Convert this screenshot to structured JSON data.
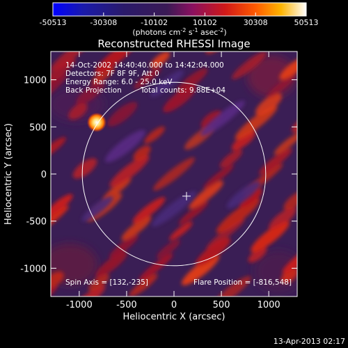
{
  "chart_data": {
    "type": "heatmap",
    "title": "Reconstructed RHESSI Image",
    "xlabel": "Heliocentric X (arcsec)",
    "ylabel": "Heliocentric Y (arcsec)",
    "xlim": [
      -1300,
      1300
    ],
    "ylim": [
      -1300,
      1300
    ],
    "x_ticks": [
      -1000,
      -500,
      0,
      500,
      1000
    ],
    "y_ticks": [
      -1000,
      -500,
      0,
      500,
      1000
    ],
    "colorbar": {
      "ticks": [
        "-50513",
        "-30308",
        "-10102",
        "10102",
        "30308",
        "50513"
      ],
      "range": [
        -50513,
        50513
      ],
      "unit_text": "(photons cm",
      "unit_sup1": "-2",
      "unit_mid": " s",
      "unit_sup2": "-1",
      "unit_mid2": " asec",
      "unit_sup3": "-2",
      "unit_end": ")",
      "colors": [
        "#0000ff",
        "#1a1aaa",
        "#2a1a6a",
        "#3a1a55",
        "#8a1060",
        "#d01818",
        "#ff5a00",
        "#ffb400",
        "#ffffff"
      ]
    },
    "annotations": {
      "time_range": "14-Oct-2002 14:40:40.000 to 14:42:04.000",
      "detectors": "Detectors: 7F 8F 9F, Att 0",
      "energy": "Energy Range: 6.0 - 25.0 keV",
      "method": "Back Projection",
      "counts": "Total counts: 9.88E+04",
      "spin_axis": "Spin Axis = [132,-235]",
      "flare_position": "Flare Position = [-816,548]"
    },
    "solar_limb_radius_arcsec": 968,
    "cross_position": [
      132,
      -235
    ],
    "bright_source": [
      -816,
      548
    ],
    "timestamp": "13-Apr-2013 02:17"
  }
}
